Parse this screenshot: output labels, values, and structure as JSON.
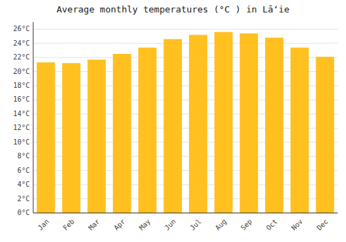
{
  "chart_data": {
    "type": "bar",
    "title": "Average monthly temperatures (°C ) in Lāʻie",
    "categories": [
      "Jan",
      "Feb",
      "Mar",
      "Apr",
      "May",
      "Jun",
      "Jul",
      "Aug",
      "Sep",
      "Oct",
      "Nov",
      "Dec"
    ],
    "values": [
      21.3,
      21.2,
      21.7,
      22.5,
      23.4,
      24.6,
      25.2,
      25.6,
      25.4,
      24.8,
      23.4,
      22.1
    ],
    "color": "#FFC020",
    "ylim": [
      0,
      27
    ],
    "yticks": [
      {
        "value": 0,
        "label": "0°C"
      },
      {
        "value": 2,
        "label": "2°C"
      },
      {
        "value": 4,
        "label": "4°C"
      },
      {
        "value": 6,
        "label": "6°C"
      },
      {
        "value": 8,
        "label": "8°C"
      },
      {
        "value": 10,
        "label": "10°C"
      },
      {
        "value": 12,
        "label": "12°C"
      },
      {
        "value": 14,
        "label": "14°C"
      },
      {
        "value": 16,
        "label": "16°C"
      },
      {
        "value": 18,
        "label": "18°C"
      },
      {
        "value": 20,
        "label": "20°C"
      },
      {
        "value": 22,
        "label": "22°C"
      },
      {
        "value": 24,
        "label": "24°C"
      },
      {
        "value": 26,
        "label": "26°C"
      }
    ],
    "grid": true
  }
}
